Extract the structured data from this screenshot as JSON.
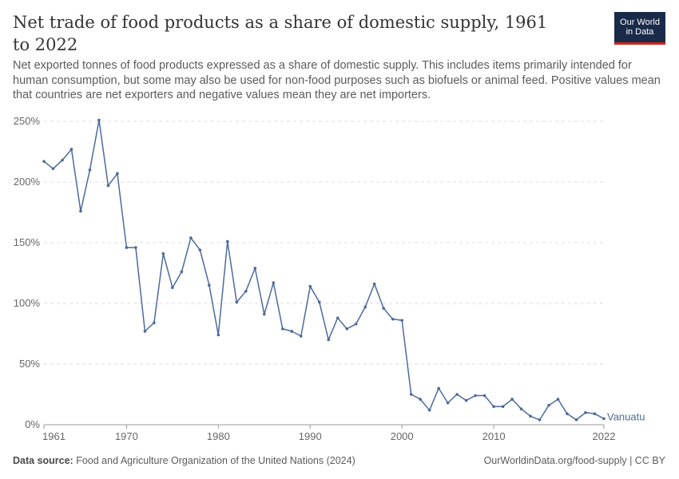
{
  "header": {
    "title": "Net trade of food products as a share of domestic supply, 1961 to 2022",
    "subtitle": "Net exported tonnes of food products expressed as a share of domestic supply. This includes items primarily intended for human consumption, but some may also be used for non-food purposes such as biofuels or animal feed. Positive values mean that countries are net exporters and negative values mean they are net importers."
  },
  "logo": {
    "line1": "Our World",
    "line2": "in Data",
    "bg_color": "#1a2b4a",
    "accent_color": "#ce261e"
  },
  "footer": {
    "source_label": "Data source:",
    "source_text": "Food and Agriculture Organization of the United Nations (2024)",
    "right_text": "OurWorldinData.org/food-supply | CC BY"
  },
  "chart_data": {
    "type": "line",
    "x_ticks": [
      1961,
      1970,
      1980,
      1990,
      2000,
      2010,
      2022
    ],
    "y_ticks": [
      0,
      50,
      100,
      150,
      200,
      250
    ],
    "y_tick_labels": [
      "0%",
      "50%",
      "100%",
      "150%",
      "200%",
      "250%"
    ],
    "xlim": [
      1961,
      2022
    ],
    "ylim": [
      0,
      250
    ],
    "grid": "horizontal dashed",
    "series": [
      {
        "name": "Vanuatu",
        "color": "#4c6a9c",
        "x": [
          1961,
          1962,
          1963,
          1964,
          1965,
          1966,
          1967,
          1968,
          1969,
          1970,
          1971,
          1972,
          1973,
          1974,
          1975,
          1976,
          1977,
          1978,
          1979,
          1980,
          1981,
          1982,
          1983,
          1984,
          1985,
          1986,
          1987,
          1988,
          1989,
          1990,
          1991,
          1992,
          1993,
          1994,
          1995,
          1996,
          1997,
          1998,
          1999,
          2000,
          2001,
          2002,
          2003,
          2004,
          2005,
          2006,
          2007,
          2008,
          2009,
          2010,
          2011,
          2012,
          2013,
          2014,
          2015,
          2016,
          2017,
          2018,
          2019,
          2020,
          2021,
          2022
        ],
        "values": [
          217,
          211,
          218,
          227,
          176,
          210,
          251,
          197,
          207,
          146,
          146,
          77,
          84,
          141,
          113,
          126,
          154,
          144,
          115,
          74,
          151,
          101,
          110,
          129,
          91,
          117,
          79,
          77,
          73,
          114,
          101,
          70,
          88,
          79,
          83,
          97,
          116,
          96,
          87,
          86,
          25,
          21,
          12,
          30,
          18,
          25,
          20,
          24,
          24,
          15,
          15,
          21,
          13,
          7,
          4,
          16,
          21,
          9,
          4,
          10,
          9,
          5
        ]
      }
    ]
  }
}
